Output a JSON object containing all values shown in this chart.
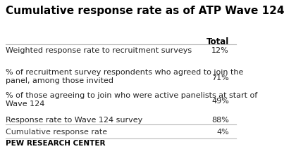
{
  "title": "Cumulative response rate as of ATP Wave 124",
  "col_header": "Total",
  "rows": [
    {
      "label": "Weighted response rate to recruitment surveys",
      "value": "12%",
      "multiline": false
    },
    {
      "label": "% of recruitment survey respondents who agreed to join the\npanel, among those invited",
      "value": "71%",
      "multiline": true
    },
    {
      "label": "% of those agreeing to join who were active panelists at start of\nWave 124",
      "value": "49%",
      "multiline": true
    },
    {
      "label": "Response rate to Wave 124 survey",
      "value": "88%",
      "multiline": false
    }
  ],
  "summary_row": {
    "label": "Cumulative response rate",
    "value": "4%"
  },
  "footer": "PEW RESEARCH CENTER",
  "bg_color": "#ffffff",
  "title_color": "#000000",
  "header_color": "#000000",
  "row_label_color": "#222222",
  "value_color": "#222222",
  "summary_label_color": "#333333",
  "summary_value_color": "#333333",
  "footer_color": "#000000",
  "separator_color": "#bbbbbb",
  "title_fontsize": 11.0,
  "header_fontsize": 8.5,
  "row_fontsize": 8.0,
  "footer_fontsize": 7.5
}
